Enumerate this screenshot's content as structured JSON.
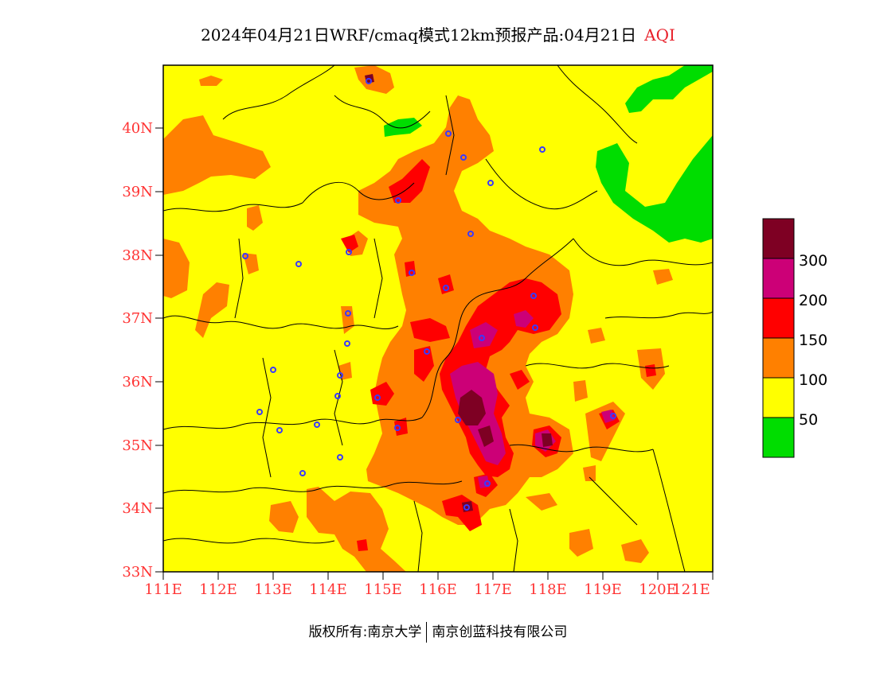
{
  "title": {
    "main": "2024年04月21日WRF/cmaq模式12km预报产品:04月21日",
    "product": "AQI"
  },
  "axes": {
    "latitudes": [
      "33N",
      "34N",
      "35N",
      "36N",
      "37N",
      "38N",
      "39N",
      "40N"
    ],
    "longitudes": [
      "111E",
      "112E",
      "113E",
      "114E",
      "115E",
      "116E",
      "117E",
      "118E",
      "119E",
      "120E",
      "121E"
    ]
  },
  "legend": {
    "levels": [
      {
        "label": "",
        "color": "#00dd00"
      },
      {
        "label": "50",
        "color": "#ffff00"
      },
      {
        "label": "100",
        "color": "#ff8000"
      },
      {
        "label": "150",
        "color": "#ff0000"
      },
      {
        "label": "200",
        "color": "#cc0077"
      },
      {
        "label": "300",
        "color": "#7e0023"
      }
    ]
  },
  "footer": {
    "copyright": "版权所有:南京大学",
    "company": "南京创蓝科技有限公司"
  },
  "colors": {
    "good": "#00dd00",
    "moderate": "#ffff00",
    "usg": "#ff8000",
    "unhealthy": "#ff0000",
    "very_unhealthy": "#cc0077",
    "hazardous": "#7e0023",
    "station_marker": "#3a3aff",
    "axis_label": "#ff3333"
  }
}
